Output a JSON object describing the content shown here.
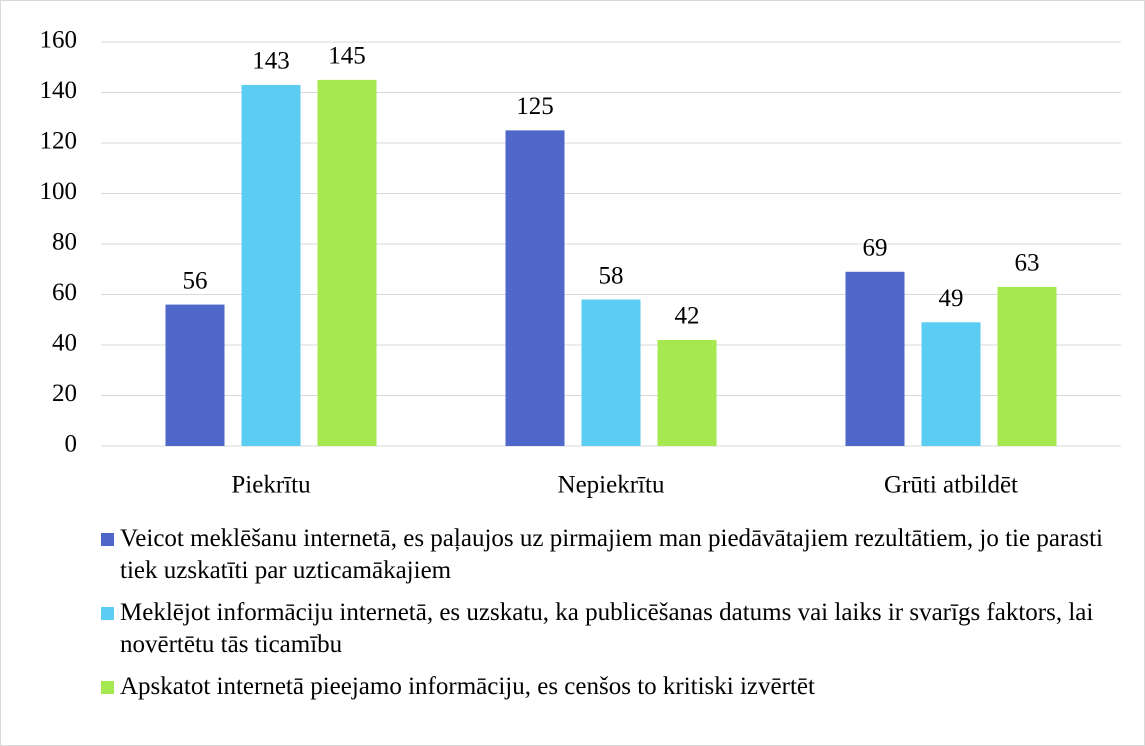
{
  "chart_data": {
    "type": "bar",
    "categories": [
      "Piekrītu",
      "Nepiekrītu",
      "Grūti atbildēt"
    ],
    "series": [
      {
        "name": "Veicot meklēšanu internetā, es paļaujos uz pirmajiem man piedāvātajiem rezultātiem, jo tie parasti tiek uzskatīti par uzticamākajiem",
        "color": "#4f67c9",
        "values": [
          56,
          125,
          69
        ]
      },
      {
        "name": "Meklējot informāciju internetā, es uzskatu, ka publicēšanas datums vai laiks ir svarīgs faktors, lai novērtētu tās ticamību",
        "color": "#5ccdf2",
        "values": [
          143,
          58,
          49
        ]
      },
      {
        "name": "Apskatot internetā pieejamo informāciju, es cenšos to kritiski izvērtēt",
        "color": "#a6e84f",
        "values": [
          145,
          42,
          63
        ]
      }
    ],
    "ylim": [
      0,
      160
    ],
    "yticks": [
      0,
      20,
      40,
      60,
      80,
      100,
      120,
      140,
      160
    ],
    "grid": true,
    "legend": "bottom"
  }
}
